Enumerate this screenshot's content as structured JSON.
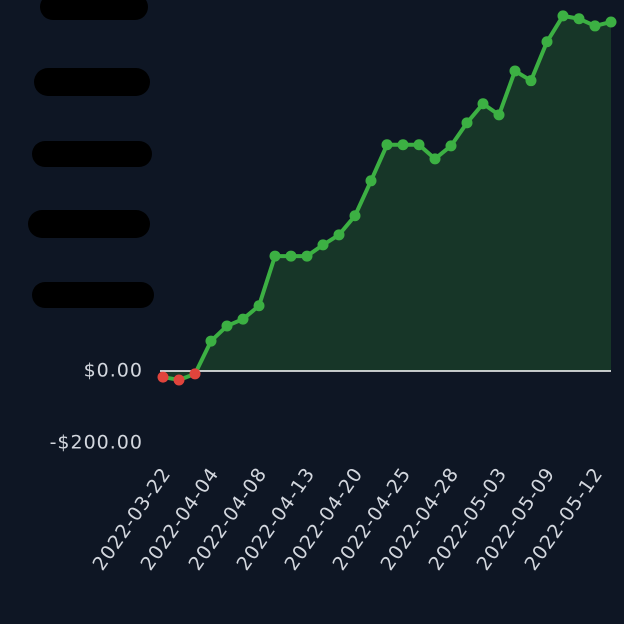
{
  "chart_data": {
    "type": "area",
    "categories": [
      "2022-03-22",
      null,
      null,
      "2022-04-04",
      null,
      null,
      "2022-04-08",
      null,
      null,
      "2022-04-13",
      null,
      null,
      "2022-04-20",
      null,
      null,
      "2022-04-25",
      null,
      null,
      "2022-04-28",
      null,
      null,
      "2022-05-03",
      null,
      null,
      "2022-05-09",
      null,
      null,
      "2022-05-12",
      null
    ],
    "series": [
      {
        "color": "#3cb043",
        "negative_color": "#e0443c",
        "fill": "#173628",
        "values": [
          -17,
          -25,
          -8,
          83,
          125,
          144,
          181,
          319,
          319,
          319,
          350,
          378,
          431,
          528,
          628,
          628,
          628,
          589,
          625,
          689,
          742,
          711,
          833,
          806,
          914,
          986,
          978,
          958,
          969
        ]
      }
    ],
    "ylim": [
      -250,
      1030
    ],
    "yticks": [
      {
        "value": 0,
        "label": "$0.00"
      },
      {
        "value": -200,
        "label": "-$200.00"
      }
    ],
    "grid": false
  }
}
